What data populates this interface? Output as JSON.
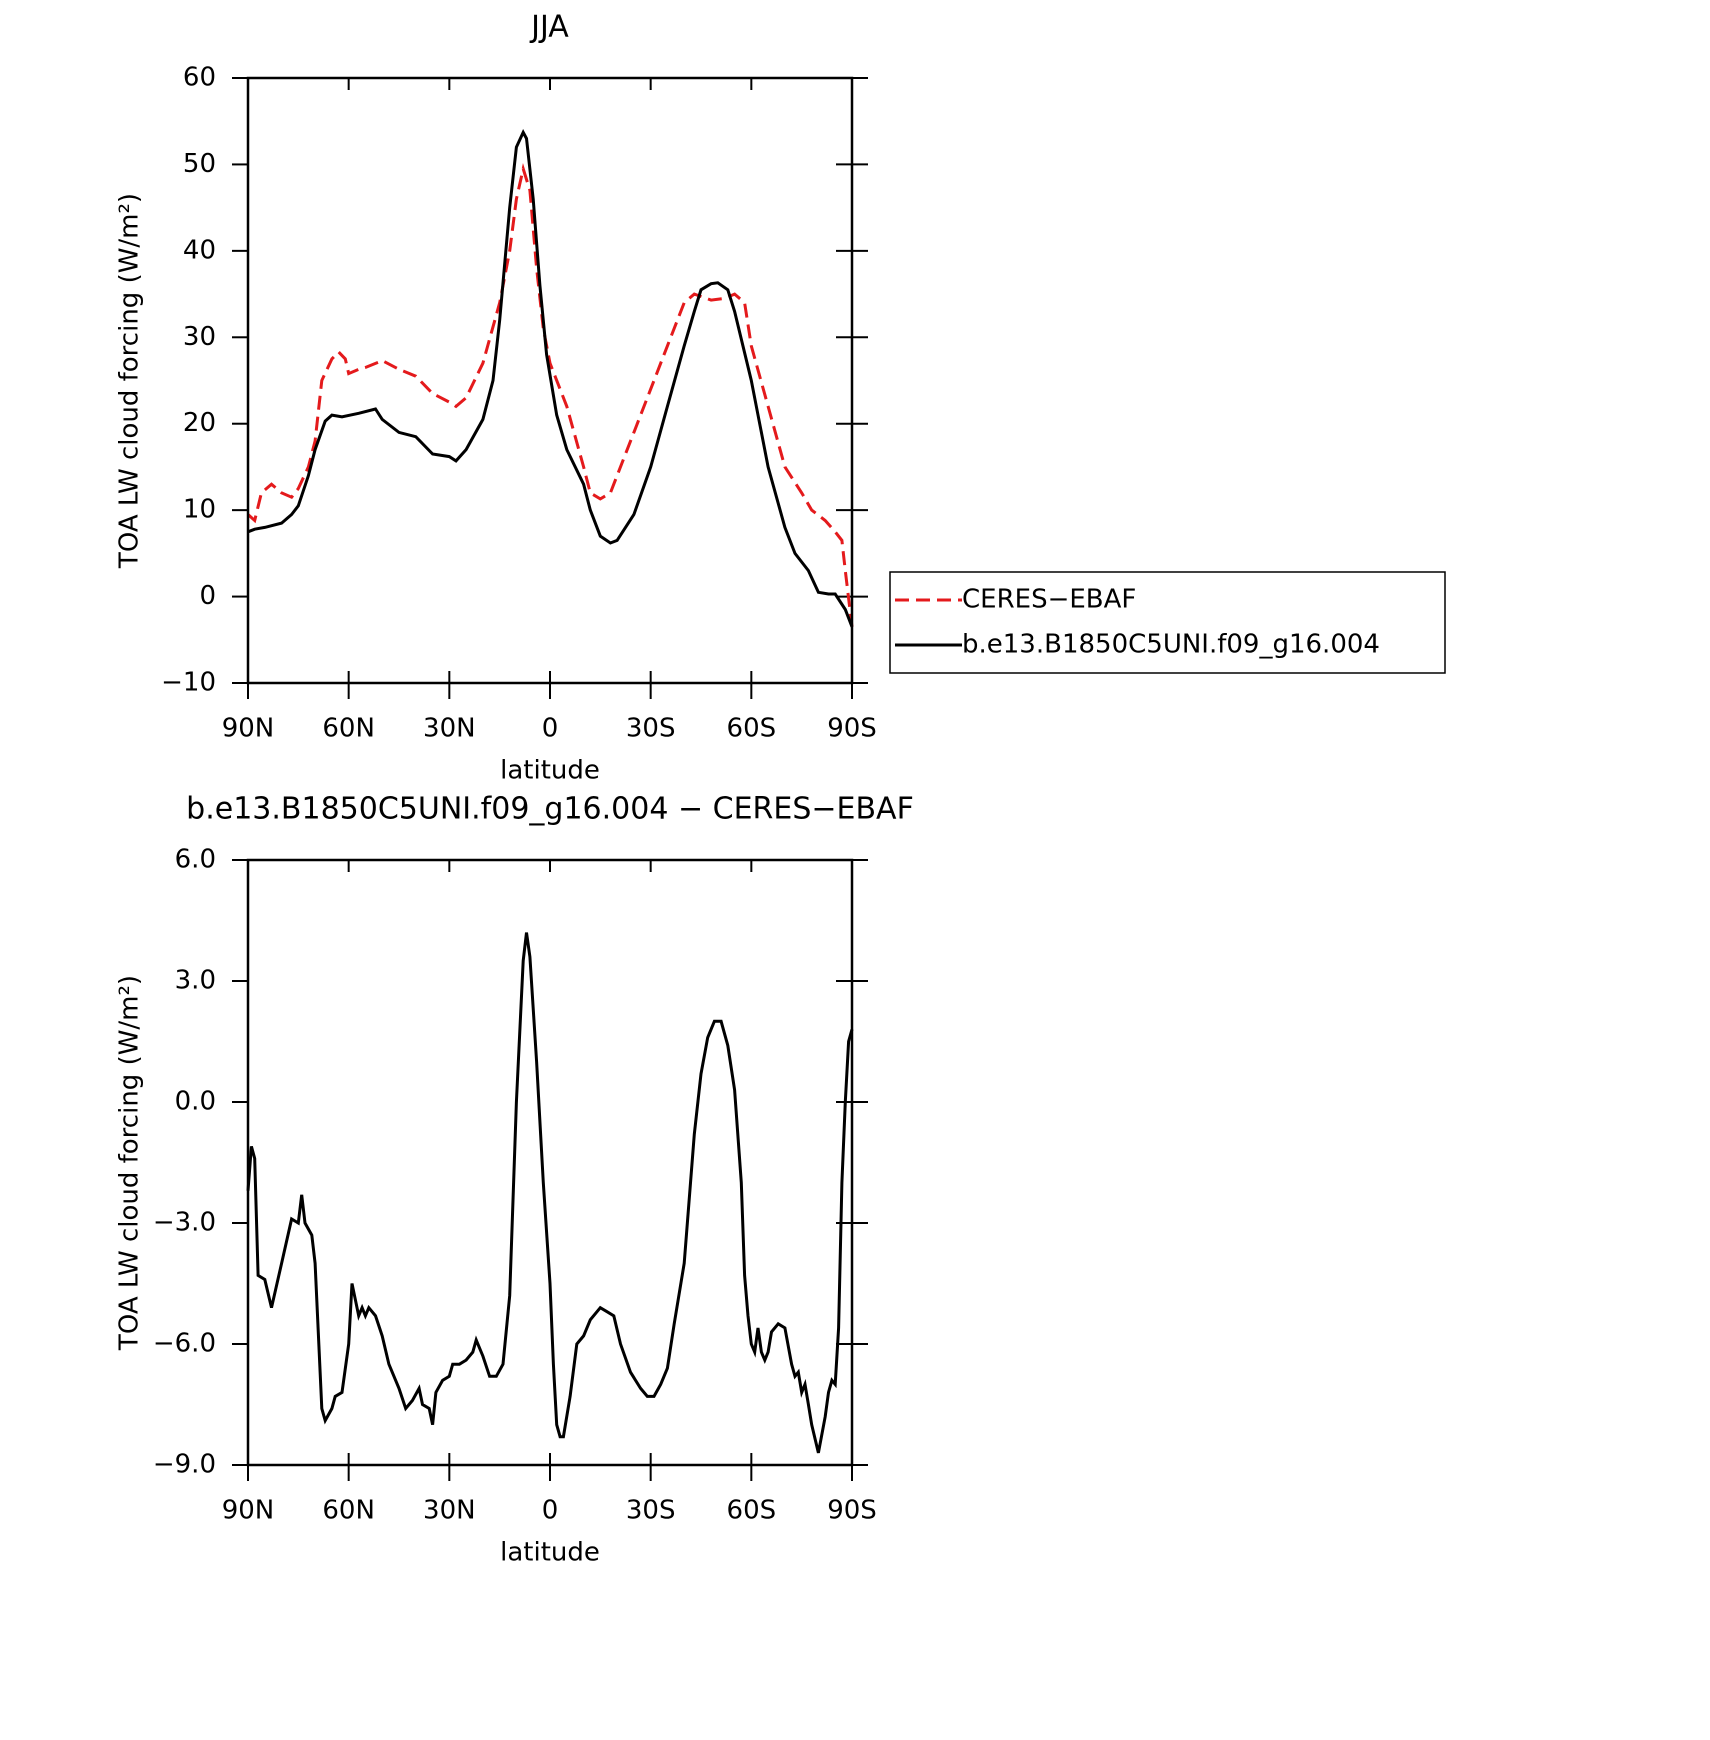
{
  "chart_data": [
    {
      "type": "line",
      "title": "JJA",
      "x_label": "latitude",
      "y_label": "TOA LW cloud forcing (W/m²)",
      "xlim": [
        90,
        -90
      ],
      "xticks": [
        {
          "value": 90,
          "label": "90N"
        },
        {
          "value": 60,
          "label": "60N"
        },
        {
          "value": 30,
          "label": "30N"
        },
        0,
        {
          "value": -30,
          "label": "30S"
        },
        {
          "value": -60,
          "label": "60S"
        },
        {
          "value": -90,
          "label": "90S"
        }
      ],
      "ylim": [
        -10,
        60
      ],
      "yticks": [
        {
          "value": -10,
          "label": "−10"
        },
        0,
        10,
        20,
        30,
        40,
        50,
        60
      ],
      "legend": "right",
      "series": [
        {
          "name": "CERES−EBAF",
          "color": "#e41a1c",
          "dash": true,
          "x": [
            90,
            88,
            86,
            83,
            80,
            77,
            75,
            72,
            70,
            68,
            65,
            63,
            61,
            60,
            57,
            55,
            50,
            45,
            40,
            35,
            30,
            28,
            25,
            20,
            15,
            12,
            10,
            8,
            6,
            4,
            2,
            0,
            -5,
            -10,
            -12,
            -15,
            -18,
            -20,
            -25,
            -30,
            -35,
            -40,
            -43,
            -48,
            -52,
            -55,
            -58,
            -60,
            -65,
            -70,
            -75,
            -78,
            -82,
            -85,
            -87,
            -88,
            -90
          ],
          "values": [
            9.5,
            8.8,
            12,
            13,
            12,
            11.5,
            12.5,
            15,
            18,
            25,
            27.5,
            28.3,
            27.5,
            25.8,
            26.3,
            26.5,
            27.3,
            26.3,
            25.5,
            23.5,
            22.5,
            22,
            23,
            27,
            34,
            40,
            46,
            49.5,
            47,
            38,
            31,
            27,
            22,
            15,
            12,
            11.3,
            12,
            14,
            19,
            24,
            29,
            34,
            35,
            34.3,
            34.5,
            35,
            34,
            29,
            22,
            15,
            12,
            10,
            8.8,
            7.5,
            6.5,
            3,
            -3.5
          ]
        },
        {
          "name": "b.e13.B1850C5UNI.f09_g16.004",
          "color": "#000000",
          "dash": false,
          "x": [
            90,
            88,
            85,
            80,
            77,
            75,
            72,
            70,
            67,
            65,
            62,
            57,
            52,
            50,
            45,
            40,
            35,
            30,
            28,
            25,
            20,
            17,
            15,
            12,
            10,
            8,
            7,
            5,
            3,
            1,
            -2,
            -5,
            -10,
            -12,
            -15,
            -18,
            -20,
            -25,
            -30,
            -35,
            -40,
            -43,
            -45,
            -48,
            -50,
            -53,
            -55,
            -60,
            -65,
            -70,
            -73,
            -77,
            -80,
            -83,
            -85,
            -88,
            -90
          ],
          "values": [
            7.5,
            7.8,
            8,
            8.5,
            9.5,
            10.5,
            14,
            17,
            20.3,
            21,
            20.8,
            21.2,
            21.7,
            20.5,
            19,
            18.5,
            16.5,
            16.2,
            15.7,
            17,
            20.5,
            25,
            32,
            45,
            52,
            53.7,
            53,
            46,
            36,
            28,
            21,
            17,
            13,
            10,
            7,
            6.2,
            6.5,
            9.5,
            15,
            22,
            29,
            33,
            35.5,
            36.2,
            36.3,
            35.5,
            33,
            25,
            15,
            8,
            5,
            3,
            0.5,
            0.3,
            0.3,
            -1.5,
            -3.5
          ]
        }
      ]
    },
    {
      "type": "line",
      "title": "b.e13.B1850C5UNI.f09_g16.004 − CERES−EBAF",
      "x_label": "latitude",
      "y_label": "TOA LW cloud forcing (W/m²)",
      "xlim": [
        90,
        -90
      ],
      "xticks": [
        {
          "value": 90,
          "label": "90N"
        },
        {
          "value": 60,
          "label": "60N"
        },
        {
          "value": 30,
          "label": "30N"
        },
        0,
        {
          "value": -30,
          "label": "30S"
        },
        {
          "value": -60,
          "label": "60S"
        },
        {
          "value": -90,
          "label": "90S"
        }
      ],
      "ylim": [
        -9,
        6
      ],
      "yticks": [
        {
          "value": -9,
          "label": "−9.0"
        },
        {
          "value": -6,
          "label": "−6.0"
        },
        {
          "value": -3,
          "label": "−3.0"
        },
        {
          "value": 0,
          "label": "0.0"
        },
        {
          "value": 3,
          "label": "3.0"
        },
        {
          "value": 6,
          "label": "6.0"
        }
      ],
      "series": [
        {
          "color": "#000000",
          "dash": false,
          "x": [
            90,
            89,
            88,
            87,
            85,
            83,
            80,
            77,
            75,
            74,
            73,
            71,
            70,
            68,
            67,
            65,
            64,
            62,
            60,
            59,
            57,
            56,
            55,
            54,
            52,
            50,
            48,
            45,
            43,
            41,
            39,
            38,
            36,
            35,
            34,
            32,
            30,
            29,
            27,
            25,
            23,
            22,
            20,
            18,
            16,
            14,
            12,
            10,
            8,
            7,
            6,
            4,
            2,
            0,
            -1,
            -2,
            -3,
            -4,
            -6,
            -8,
            -10,
            -12,
            -15,
            -17,
            -19,
            -21,
            -24,
            -27,
            -29,
            -31,
            -33,
            -35,
            -37,
            -40,
            -43,
            -45,
            -47,
            -49,
            -51,
            -53,
            -55,
            -57,
            -58,
            -59,
            -60,
            -61,
            -62,
            -63,
            -64,
            -65,
            -66,
            -68,
            -70,
            -72,
            -73,
            -74,
            -75,
            -76,
            -77,
            -78,
            -80,
            -82,
            -83,
            -84,
            -85,
            -86,
            -87,
            -88,
            -89,
            -90
          ],
          "values": [
            -2.2,
            -1.1,
            -1.4,
            -4.3,
            -4.4,
            -5.1,
            -4,
            -2.9,
            -3,
            -2.3,
            -3,
            -3.3,
            -4,
            -7.6,
            -7.9,
            -7.6,
            -7.3,
            -7.2,
            -6,
            -4.5,
            -5.3,
            -5.1,
            -5.3,
            -5.1,
            -5.3,
            -5.8,
            -6.5,
            -7.1,
            -7.6,
            -7.4,
            -7.1,
            -7.5,
            -7.6,
            -8,
            -7.2,
            -6.9,
            -6.8,
            -6.5,
            -6.5,
            -6.4,
            -6.2,
            -5.9,
            -6.3,
            -6.8,
            -6.8,
            -6.5,
            -4.8,
            0,
            3.5,
            4.2,
            3.6,
            1,
            -2,
            -4.5,
            -6.5,
            -8,
            -8.3,
            -8.3,
            -7.3,
            -6,
            -5.8,
            -5.4,
            -5.1,
            -5.2,
            -5.3,
            -6,
            -6.7,
            -7.1,
            -7.3,
            -7.3,
            -7,
            -6.6,
            -5.5,
            -4,
            -0.8,
            0.7,
            1.6,
            2,
            2,
            1.4,
            0.3,
            -2,
            -4.3,
            -5.3,
            -6,
            -6.2,
            -5.6,
            -6.2,
            -6.4,
            -6.2,
            -5.7,
            -5.5,
            -5.6,
            -6.5,
            -6.8,
            -6.7,
            -7.2,
            -7,
            -7.5,
            -8,
            -8.7,
            -7.8,
            -7.2,
            -6.9,
            -7,
            -5.6,
            -2,
            0,
            1.5,
            1.8
          ]
        }
      ]
    }
  ]
}
